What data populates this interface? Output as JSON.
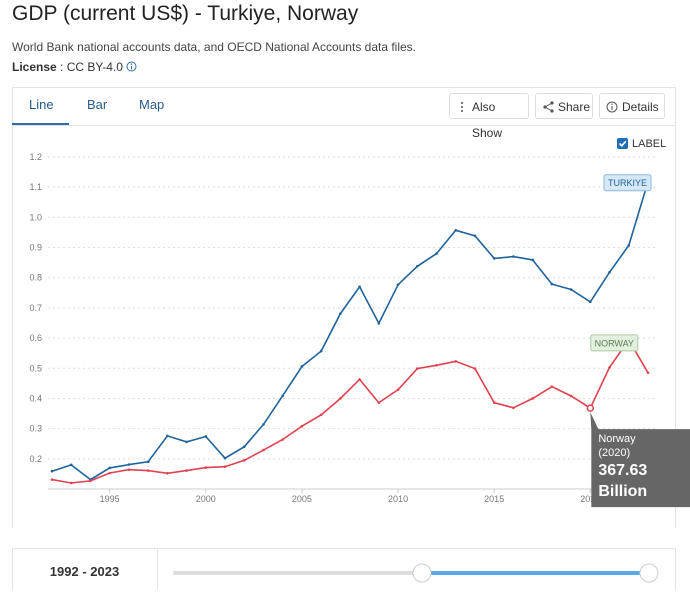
{
  "header": {
    "title": "GDP (current US$) - Turkiye, Norway",
    "source": "World Bank national accounts data, and OECD National Accounts data files.",
    "license_label": "License",
    "license_sep": ":",
    "license": "CC BY-4.0"
  },
  "tabs": [
    "Line",
    "Bar",
    "Map"
  ],
  "buttons": [
    "Also Show",
    "Share",
    "Details"
  ],
  "label_toggle": "LABEL",
  "tooltip": {
    "series": "Norway",
    "period": "(2020)",
    "value": "367.63",
    "unit": "Billion"
  },
  "range": {
    "start": "1992",
    "sep": "-",
    "end": "2023"
  },
  "chart_data": {
    "type": "line",
    "x": [
      1992,
      1993,
      1994,
      1995,
      1996,
      1997,
      1998,
      1999,
      2000,
      2001,
      2002,
      2003,
      2004,
      2005,
      2006,
      2007,
      2008,
      2009,
      2010,
      2011,
      2012,
      2013,
      2014,
      2015,
      2016,
      2017,
      2018,
      2019,
      2020,
      2021,
      2022,
      2023
    ],
    "series": [
      {
        "name": "TURKIYE",
        "color": "#1f639c",
        "values": [
          0.159,
          0.18,
          0.131,
          0.17,
          0.181,
          0.19,
          0.276,
          0.256,
          0.274,
          0.202,
          0.24,
          0.314,
          0.409,
          0.506,
          0.557,
          0.681,
          0.77,
          0.649,
          0.777,
          0.838,
          0.88,
          0.957,
          0.939,
          0.864,
          0.87,
          0.859,
          0.779,
          0.761,
          0.72,
          0.818,
          0.907,
          1.118
        ]
      },
      {
        "name": "NORWAY",
        "color": "#e0424f",
        "values": [
          0.131,
          0.12,
          0.127,
          0.153,
          0.164,
          0.161,
          0.152,
          0.161,
          0.171,
          0.174,
          0.195,
          0.229,
          0.264,
          0.308,
          0.346,
          0.4,
          0.463,
          0.386,
          0.429,
          0.499,
          0.51,
          0.523,
          0.499,
          0.386,
          0.369,
          0.4,
          0.439,
          0.408,
          0.368,
          0.503,
          0.594,
          0.485
        ]
      }
    ],
    "xlim": [
      1992,
      2023
    ],
    "xticks": [
      1995,
      2000,
      2005,
      2010,
      2015,
      2020
    ],
    "ylim": [
      0.1,
      1.2
    ],
    "yticks": [
      0.2,
      0.3,
      0.4,
      0.5,
      0.6,
      0.7,
      0.8,
      0.9,
      {
        "value": 1,
        "label": "1.0"
      },
      1.1,
      1.2
    ],
    "grid": true
  }
}
